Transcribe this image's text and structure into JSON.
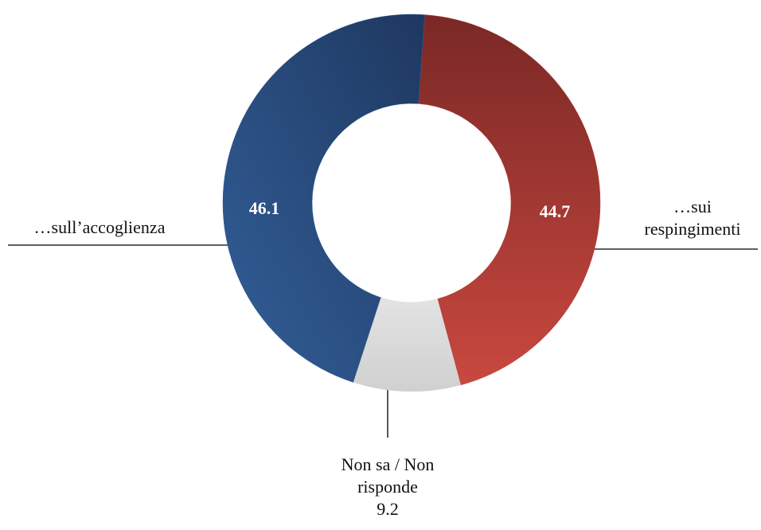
{
  "chart_data": {
    "type": "donut",
    "categories": [
      "…sui respingimenti",
      "Non sa / Non risponde",
      "…sull’accoglienza"
    ],
    "values": [
      44.7,
      9.2,
      46.1
    ],
    "colors": [
      "#b03a37",
      "#d9d9d9",
      "#2d5a92"
    ]
  }
}
